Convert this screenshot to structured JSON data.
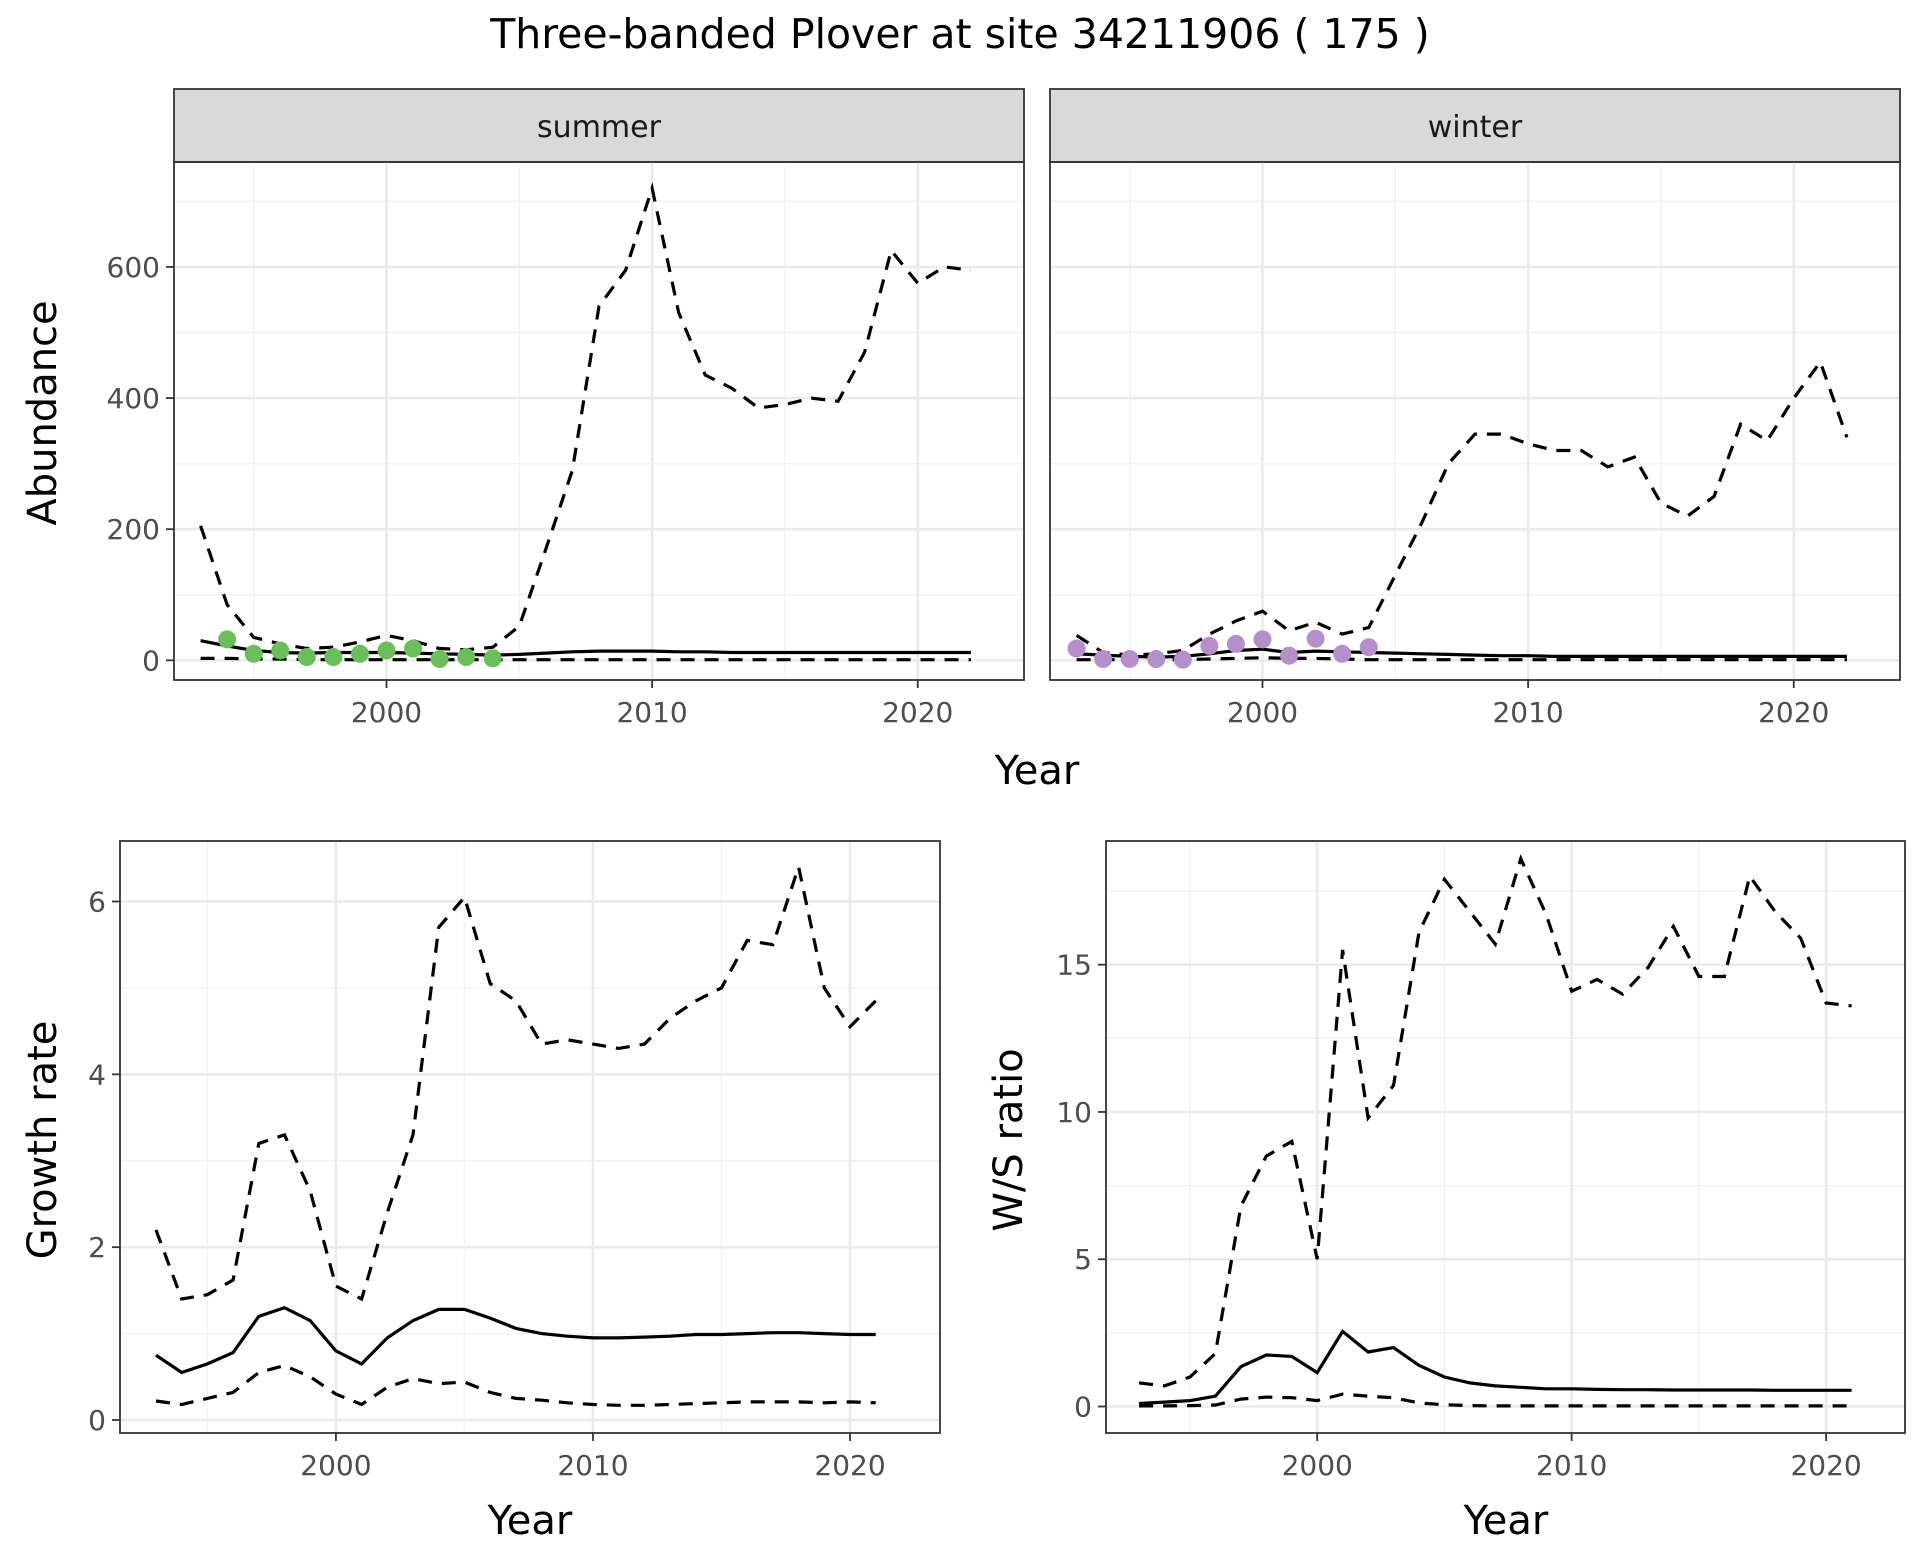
{
  "title": "Three-banded Plover at site 34211906 ( 175 )",
  "colors": {
    "summer_points": "#6abf59",
    "winter_points": "#b48fca",
    "lines": "#000000"
  },
  "chart_data": [
    {
      "type": "line",
      "facet": "summer",
      "ylabel": "Abundance",
      "xlabel": "Year",
      "xlim": [
        1992,
        2024
      ],
      "ylim": [
        -30,
        760
      ],
      "x_ticks": [
        2000,
        2010,
        2020
      ],
      "y_ticks": [
        0,
        200,
        400,
        600
      ],
      "grid": true,
      "x": [
        1993,
        1994,
        1995,
        1996,
        1997,
        1998,
        1999,
        2000,
        2001,
        2002,
        2003,
        2004,
        2005,
        2006,
        2007,
        2008,
        2009,
        2010,
        2011,
        2012,
        2013,
        2014,
        2015,
        2016,
        2017,
        2018,
        2019,
        2020,
        2021,
        2022
      ],
      "series": [
        {
          "name": "",
          "style": "solid",
          "values": [
            30,
            22,
            15,
            12,
            11,
            12,
            12,
            12,
            11,
            10,
            9,
            8,
            9,
            11,
            13,
            14,
            14,
            14,
            13,
            13,
            12,
            12,
            12,
            12,
            12,
            12,
            12,
            12,
            12,
            12
          ]
        },
        {
          "name": "",
          "style": "dashed-upper",
          "values": [
            205,
            85,
            35,
            25,
            18,
            20,
            28,
            38,
            30,
            18,
            16,
            20,
            52,
            170,
            290,
            540,
            595,
            720,
            530,
            435,
            415,
            385,
            390,
            400,
            395,
            470,
            625,
            575,
            600,
            595
          ]
        },
        {
          "name": "",
          "style": "dashed-lower",
          "values": [
            3,
            3,
            2,
            2,
            1,
            1,
            1,
            1,
            1,
            1,
            1,
            1,
            1,
            1,
            1,
            1,
            1,
            1,
            1,
            1,
            1,
            1,
            1,
            1,
            1,
            1,
            1,
            1,
            1,
            1
          ]
        }
      ],
      "points": {
        "x": [
          1994,
          1995,
          1996,
          1997,
          1998,
          1999,
          2000,
          2001,
          2002,
          2003,
          2004
        ],
        "y": [
          32,
          10,
          15,
          5,
          5,
          10,
          15,
          18,
          2,
          5,
          3
        ]
      }
    },
    {
      "type": "line",
      "facet": "winter",
      "xlabel": "Year",
      "xlim": [
        1992,
        2024
      ],
      "ylim": [
        -30,
        760
      ],
      "x_ticks": [
        2000,
        2010,
        2020
      ],
      "y_ticks": [
        0,
        200,
        400,
        600
      ],
      "grid": true,
      "x": [
        1993,
        1994,
        1995,
        1996,
        1997,
        1998,
        1999,
        2000,
        2001,
        2002,
        2003,
        2004,
        2005,
        2006,
        2007,
        2008,
        2009,
        2010,
        2011,
        2012,
        2013,
        2014,
        2015,
        2016,
        2017,
        2018,
        2019,
        2020,
        2021,
        2022
      ],
      "series": [
        {
          "name": "",
          "style": "solid",
          "values": [
            10,
            8,
            6,
            5,
            6,
            10,
            15,
            17,
            12,
            14,
            13,
            12,
            11,
            10,
            9,
            8,
            7,
            7,
            6,
            6,
            6,
            6,
            6,
            6,
            6,
            6,
            6,
            6,
            6,
            6
          ]
        },
        {
          "name": "",
          "style": "dashed-upper",
          "values": [
            38,
            12,
            8,
            10,
            15,
            40,
            60,
            75,
            45,
            58,
            40,
            50,
            130,
            210,
            300,
            345,
            345,
            330,
            320,
            320,
            295,
            310,
            240,
            220,
            250,
            360,
            335,
            400,
            455,
            340
          ]
        },
        {
          "name": "",
          "style": "dashed-lower",
          "values": [
            1,
            1,
            1,
            1,
            1,
            2,
            3,
            4,
            3,
            3,
            2,
            1,
            1,
            1,
            1,
            1,
            1,
            1,
            1,
            1,
            1,
            1,
            1,
            1,
            1,
            1,
            1,
            1,
            1,
            1
          ]
        }
      ],
      "points": {
        "x": [
          1993,
          1994,
          1995,
          1996,
          1997,
          1998,
          1999,
          2000,
          2001,
          2002,
          2003,
          2004
        ],
        "y": [
          18,
          2,
          2,
          2,
          1,
          22,
          25,
          32,
          7,
          33,
          10,
          20
        ]
      }
    },
    {
      "type": "line",
      "ylabel": "Growth rate",
      "xlabel": "Year",
      "xlim": [
        1991.6,
        2023.5
      ],
      "ylim": [
        -0.15,
        6.7
      ],
      "x_ticks": [
        2000,
        2010,
        2020
      ],
      "y_ticks": [
        0,
        2,
        4,
        6
      ],
      "grid": true,
      "x": [
        1993,
        1994,
        1995,
        1996,
        1997,
        1998,
        1999,
        2000,
        2001,
        2002,
        2003,
        2004,
        2005,
        2006,
        2007,
        2008,
        2009,
        2010,
        2011,
        2012,
        2013,
        2014,
        2015,
        2016,
        2017,
        2018,
        2019,
        2020,
        2021
      ],
      "series": [
        {
          "name": "",
          "style": "solid",
          "values": [
            0.75,
            0.55,
            0.65,
            0.78,
            1.2,
            1.3,
            1.15,
            0.8,
            0.65,
            0.95,
            1.15,
            1.28,
            1.28,
            1.18,
            1.06,
            1.0,
            0.97,
            0.95,
            0.95,
            0.96,
            0.97,
            0.99,
            0.99,
            1.0,
            1.01,
            1.01,
            1.0,
            0.99,
            0.99
          ]
        },
        {
          "name": "",
          "style": "dashed-upper",
          "values": [
            2.2,
            1.4,
            1.45,
            1.62,
            3.2,
            3.3,
            2.65,
            1.55,
            1.4,
            2.4,
            3.3,
            5.7,
            6.05,
            5.05,
            4.85,
            4.35,
            4.4,
            4.35,
            4.3,
            4.35,
            4.65,
            4.85,
            5.0,
            5.55,
            5.5,
            6.4,
            5.0,
            4.55,
            4.85
          ]
        },
        {
          "name": "",
          "style": "dashed-lower",
          "values": [
            0.22,
            0.18,
            0.25,
            0.32,
            0.55,
            0.63,
            0.5,
            0.3,
            0.18,
            0.38,
            0.48,
            0.42,
            0.44,
            0.32,
            0.25,
            0.23,
            0.2,
            0.18,
            0.17,
            0.17,
            0.18,
            0.19,
            0.2,
            0.21,
            0.21,
            0.21,
            0.2,
            0.21,
            0.2
          ]
        }
      ]
    },
    {
      "type": "line",
      "ylabel": "W/S ratio",
      "xlabel": "Year",
      "xlim": [
        1991.7,
        2023.1
      ],
      "ylim": [
        -0.9,
        19.2
      ],
      "x_ticks": [
        2000,
        2010,
        2020
      ],
      "y_ticks": [
        0,
        5,
        10,
        15
      ],
      "grid": true,
      "x": [
        1993,
        1994,
        1995,
        1996,
        1997,
        1998,
        1999,
        2000,
        2001,
        2002,
        2003,
        2004,
        2005,
        2006,
        2007,
        2008,
        2009,
        2010,
        2011,
        2012,
        2013,
        2014,
        2015,
        2016,
        2017,
        2018,
        2019,
        2020,
        2021
      ],
      "series": [
        {
          "name": "",
          "style": "solid",
          "values": [
            0.1,
            0.15,
            0.2,
            0.35,
            1.35,
            1.75,
            1.7,
            1.15,
            2.55,
            1.85,
            2.0,
            1.4,
            1.0,
            0.8,
            0.7,
            0.65,
            0.6,
            0.6,
            0.58,
            0.57,
            0.57,
            0.56,
            0.56,
            0.56,
            0.56,
            0.55,
            0.55,
            0.55,
            0.55
          ]
        },
        {
          "name": "",
          "style": "dashed-upper",
          "values": [
            0.8,
            0.7,
            1.0,
            1.8,
            6.8,
            8.5,
            9.0,
            5.0,
            15.5,
            9.8,
            10.9,
            16.1,
            17.9,
            16.8,
            15.7,
            18.6,
            16.7,
            14.1,
            14.5,
            14.0,
            14.9,
            16.3,
            14.6,
            14.6,
            18.0,
            16.8,
            15.9,
            13.7,
            13.6
          ]
        },
        {
          "name": "",
          "style": "dashed-lower",
          "values": [
            0.02,
            0.02,
            0.03,
            0.05,
            0.25,
            0.32,
            0.3,
            0.2,
            0.42,
            0.35,
            0.3,
            0.12,
            0.06,
            0.03,
            0.02,
            0.02,
            0.02,
            0.02,
            0.02,
            0.02,
            0.02,
            0.02,
            0.02,
            0.02,
            0.02,
            0.02,
            0.02,
            0.02,
            0.02
          ]
        }
      ]
    }
  ]
}
